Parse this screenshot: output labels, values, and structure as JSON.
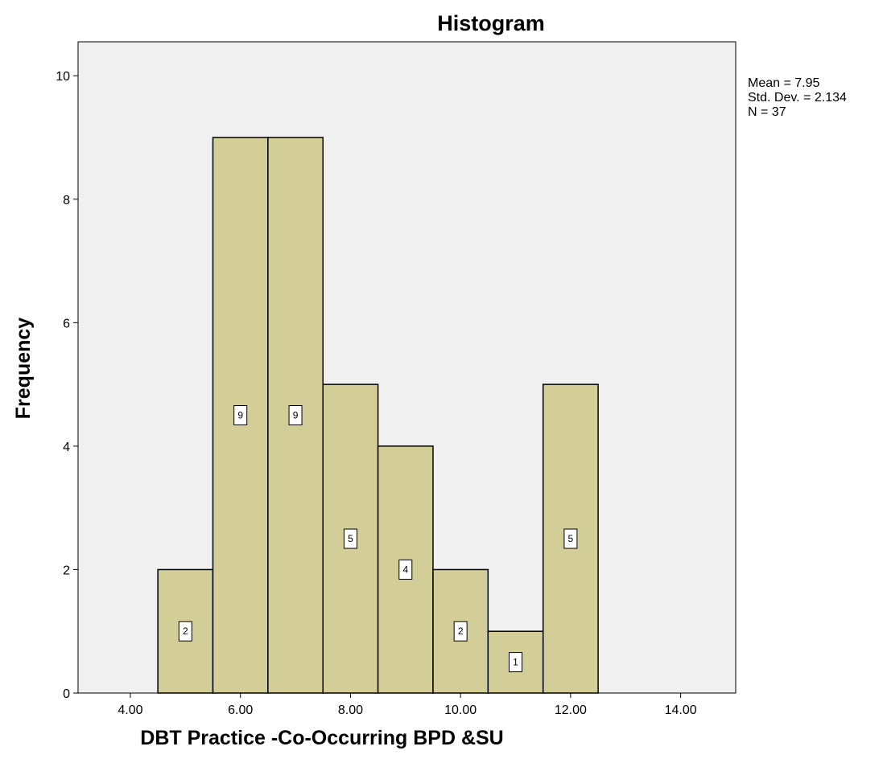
{
  "chart_data": {
    "type": "bar",
    "title": "Histogram",
    "xlabel": "DBT Practice -Co-Occurring BPD &SU",
    "ylabel": "Frequency",
    "bins": [
      {
        "center": 5,
        "value": 2,
        "label": "2"
      },
      {
        "center": 6,
        "value": 9,
        "label": "9"
      },
      {
        "center": 7,
        "value": 9,
        "label": "9"
      },
      {
        "center": 8,
        "value": 5,
        "label": "5"
      },
      {
        "center": 9,
        "value": 4,
        "label": "4"
      },
      {
        "center": 10,
        "value": 2,
        "label": "2"
      },
      {
        "center": 11,
        "value": 1,
        "label": "1"
      },
      {
        "center": 12,
        "value": 5,
        "label": "5"
      }
    ],
    "bin_width": 1,
    "xlim": [
      3.05,
      15.0
    ],
    "ylim": [
      0,
      10.55
    ],
    "x_ticks": [
      {
        "value": 4,
        "label": "4.00"
      },
      {
        "value": 6,
        "label": "6.00"
      },
      {
        "value": 8,
        "label": "8.00"
      },
      {
        "value": 10,
        "label": "10.00"
      },
      {
        "value": 12,
        "label": "12.00"
      },
      {
        "value": 14,
        "label": "14.00"
      }
    ],
    "y_ticks": [
      {
        "value": 0,
        "label": "0"
      },
      {
        "value": 2,
        "label": "2"
      },
      {
        "value": 4,
        "label": "4"
      },
      {
        "value": 6,
        "label": "6"
      },
      {
        "value": 8,
        "label": "8"
      },
      {
        "value": 10,
        "label": "10"
      }
    ],
    "stats": [
      "Mean = 7.95",
      "Std. Dev. = 2.134",
      "N = 37"
    ],
    "grid": false,
    "legend": "none",
    "colors": {
      "plot_background": "#f0f0f0",
      "bar_fill": "#d3ce97",
      "bar_stroke": "#000000",
      "label_box": "#ffffff"
    }
  }
}
